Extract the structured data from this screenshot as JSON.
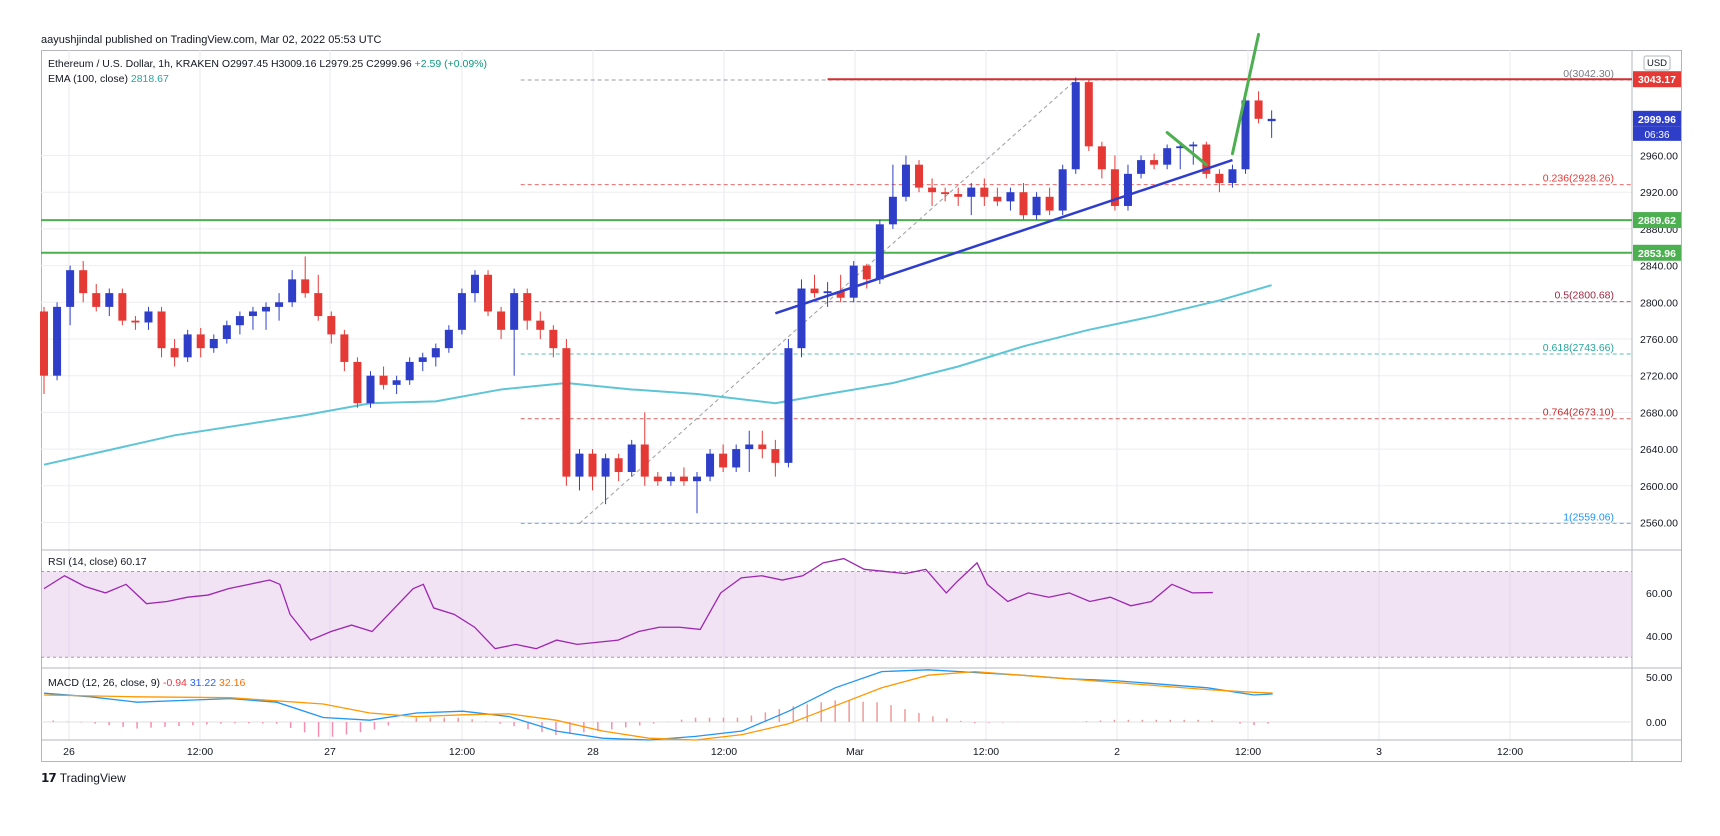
{
  "header": {
    "published_text": "aayushjindal published on TradingView.com, Mar 02, 2022 05:53 UTC"
  },
  "legend": {
    "symbol": "Ethereum / U.S. Dollar, 1h, KRAKEN",
    "open": "O2997.45",
    "high": "H3009.16",
    "low": "L2979.25",
    "close": "C2999.96",
    "change": "+2.59 (+0.09%)",
    "ema_label": "EMA (100, close)",
    "ema_value": "2818.67"
  },
  "rsi": {
    "label": "RSI (14, close)",
    "value": "60.17"
  },
  "macd": {
    "label": "MACD (12, 26, close, 9)",
    "v1": "-0.94",
    "v2": "31.22",
    "v3": "32.16"
  },
  "footer": {
    "brand": "TradingView"
  },
  "colors": {
    "up": "#2e3ec9",
    "down": "#e53935",
    "ema": "#5ec5d6",
    "support": "#4caf50",
    "resistance": "#d32f2f",
    "trend": "#2f3dcc",
    "rsi": "#9c27b0",
    "macd": "#2196f3",
    "signal": "#ff9800"
  },
  "chart_data": {
    "type": "candlestick",
    "symbol": "ETH/USD",
    "timeframe": "1h",
    "currency": "USD",
    "ylim": [
      2530,
      3075
    ],
    "y_ticks": [
      2560,
      2600,
      2640,
      2680,
      2720,
      2760,
      2800,
      2840,
      2880,
      2920,
      2960
    ],
    "y_tick_labels": [
      "2560.00",
      "2600.00",
      "2640.00",
      "2680.00",
      "2720.00",
      "2760.00",
      "2800.00",
      "2840.00",
      "2880.00",
      "2920.00",
      "2960.00"
    ],
    "x_tick_labels": [
      "26",
      "12:00",
      "27",
      "12:00",
      "28",
      "12:00",
      "Mar",
      "12:00",
      "2",
      "12:00",
      "3",
      "12:00"
    ],
    "price_tags": [
      {
        "label": "3043.17",
        "value": 3043.17,
        "color": "#e53935"
      },
      {
        "label": "2999.96",
        "value": 2999.96,
        "color": "#2e3ec9"
      },
      {
        "label": "06:36",
        "value": 2999.96,
        "color": "#2e3ec9"
      },
      {
        "label": "2889.62",
        "value": 2889.62,
        "color": "#4caf50"
      },
      {
        "label": "2853.96",
        "value": 2853.96,
        "color": "#4caf50"
      }
    ],
    "fib_levels": [
      {
        "label": "0(3042.30)",
        "ratio": "0",
        "value": 3042.3,
        "color": "#787b86"
      },
      {
        "label": "0.236(2928.26)",
        "ratio": "0.236",
        "value": 2928.26,
        "color": "#e53935"
      },
      {
        "label": "0.5(2800.68)",
        "ratio": "0.5",
        "value": 2800.68,
        "color": "#9c2742"
      },
      {
        "label": "0.618(2743.66)",
        "ratio": "0.618",
        "value": 2743.66,
        "color": "#26a69a"
      },
      {
        "label": "0.764(2673.10)",
        "ratio": "0.764",
        "value": 2673.1,
        "color": "#c62828"
      },
      {
        "label": "1(2559.06)",
        "ratio": "1",
        "value": 2559.06,
        "color": "#2196f3"
      }
    ],
    "horizontal_lines": [
      {
        "name": "resistance",
        "value": 3043.17
      },
      {
        "name": "support-upper",
        "value": 2889.62
      },
      {
        "name": "support-lower",
        "value": 2853.96
      }
    ],
    "trendline": {
      "start_t": 56,
      "start_v": 2788,
      "end_t": 91,
      "end_v": 2955
    },
    "projection": [
      {
        "t1": 86,
        "v1": 2985,
        "t2": 89,
        "v2": 2950
      },
      {
        "t1": 91,
        "v1": 2962,
        "t2": 93,
        "v2": 3092
      }
    ],
    "candles": [
      [
        2790,
        2795,
        2700,
        2720
      ],
      [
        2720,
        2800,
        2715,
        2795
      ],
      [
        2795,
        2840,
        2775,
        2835
      ],
      [
        2835,
        2845,
        2800,
        2810
      ],
      [
        2810,
        2820,
        2790,
        2795
      ],
      [
        2795,
        2815,
        2785,
        2810
      ],
      [
        2810,
        2815,
        2775,
        2780
      ],
      [
        2780,
        2785,
        2770,
        2778
      ],
      [
        2778,
        2795,
        2770,
        2790
      ],
      [
        2790,
        2795,
        2740,
        2750
      ],
      [
        2750,
        2760,
        2730,
        2740
      ],
      [
        2740,
        2770,
        2735,
        2765
      ],
      [
        2765,
        2772,
        2740,
        2750
      ],
      [
        2750,
        2765,
        2745,
        2760
      ],
      [
        2760,
        2780,
        2755,
        2775
      ],
      [
        2775,
        2790,
        2765,
        2785
      ],
      [
        2785,
        2795,
        2770,
        2790
      ],
      [
        2790,
        2800,
        2770,
        2795
      ],
      [
        2795,
        2810,
        2780,
        2800
      ],
      [
        2800,
        2835,
        2795,
        2825
      ],
      [
        2825,
        2850,
        2805,
        2810
      ],
      [
        2810,
        2830,
        2780,
        2785
      ],
      [
        2785,
        2790,
        2755,
        2765
      ],
      [
        2765,
        2770,
        2725,
        2735
      ],
      [
        2735,
        2740,
        2685,
        2690
      ],
      [
        2690,
        2725,
        2685,
        2720
      ],
      [
        2720,
        2730,
        2705,
        2710
      ],
      [
        2710,
        2720,
        2700,
        2715
      ],
      [
        2715,
        2740,
        2710,
        2735
      ],
      [
        2735,
        2745,
        2725,
        2740
      ],
      [
        2740,
        2755,
        2730,
        2750
      ],
      [
        2750,
        2775,
        2745,
        2770
      ],
      [
        2770,
        2815,
        2765,
        2810
      ],
      [
        2810,
        2835,
        2800,
        2830
      ],
      [
        2830,
        2835,
        2785,
        2790
      ],
      [
        2790,
        2795,
        2760,
        2770
      ],
      [
        2770,
        2815,
        2720,
        2810
      ],
      [
        2810,
        2815,
        2770,
        2780
      ],
      [
        2780,
        2790,
        2760,
        2770
      ],
      [
        2770,
        2775,
        2740,
        2750
      ],
      [
        2750,
        2760,
        2600,
        2610
      ],
      [
        2610,
        2640,
        2595,
        2635
      ],
      [
        2635,
        2640,
        2595,
        2610
      ],
      [
        2610,
        2635,
        2580,
        2630
      ],
      [
        2630,
        2635,
        2605,
        2615
      ],
      [
        2615,
        2650,
        2610,
        2645
      ],
      [
        2645,
        2680,
        2600,
        2610
      ],
      [
        2610,
        2615,
        2600,
        2605
      ],
      [
        2605,
        2615,
        2600,
        2610
      ],
      [
        2610,
        2620,
        2600,
        2605
      ],
      [
        2605,
        2615,
        2570,
        2610
      ],
      [
        2610,
        2640,
        2605,
        2635
      ],
      [
        2635,
        2645,
        2615,
        2620
      ],
      [
        2620,
        2645,
        2615,
        2640
      ],
      [
        2640,
        2660,
        2615,
        2645
      ],
      [
        2645,
        2660,
        2630,
        2640
      ],
      [
        2640,
        2650,
        2610,
        2625
      ],
      [
        2625,
        2760,
        2620,
        2750
      ],
      [
        2750,
        2825,
        2740,
        2815
      ],
      [
        2815,
        2830,
        2805,
        2810
      ],
      [
        2810,
        2822,
        2795,
        2812
      ],
      [
        2812,
        2830,
        2800,
        2805
      ],
      [
        2805,
        2845,
        2800,
        2840
      ],
      [
        2840,
        2842,
        2815,
        2825
      ],
      [
        2825,
        2890,
        2820,
        2885
      ],
      [
        2885,
        2950,
        2880,
        2915
      ],
      [
        2915,
        2960,
        2910,
        2950
      ],
      [
        2950,
        2955,
        2920,
        2925
      ],
      [
        2925,
        2935,
        2905,
        2920
      ],
      [
        2920,
        2925,
        2910,
        2918
      ],
      [
        2918,
        2925,
        2905,
        2915
      ],
      [
        2915,
        2930,
        2895,
        2925
      ],
      [
        2925,
        2935,
        2905,
        2915
      ],
      [
        2915,
        2925,
        2905,
        2910
      ],
      [
        2910,
        2925,
        2900,
        2920
      ],
      [
        2920,
        2930,
        2890,
        2895
      ],
      [
        2895,
        2920,
        2890,
        2915
      ],
      [
        2915,
        2925,
        2895,
        2900
      ],
      [
        2900,
        2950,
        2895,
        2945
      ],
      [
        2945,
        3045,
        2940,
        3040
      ],
      [
        3040,
        3042,
        2965,
        2970
      ],
      [
        2970,
        2975,
        2935,
        2945
      ],
      [
        2945,
        2960,
        2900,
        2905
      ],
      [
        2905,
        2950,
        2900,
        2940
      ],
      [
        2940,
        2960,
        2935,
        2955
      ],
      [
        2955,
        2962,
        2945,
        2950
      ],
      [
        2950,
        2972,
        2945,
        2968
      ],
      [
        2968,
        2975,
        2945,
        2970
      ],
      [
        2970,
        2975,
        2950,
        2972
      ],
      [
        2972,
        2975,
        2935,
        2940
      ],
      [
        2940,
        2945,
        2920,
        2930
      ],
      [
        2930,
        2950,
        2925,
        2945
      ],
      [
        2945,
        3025,
        2940,
        3020
      ],
      [
        3020,
        3030,
        2995,
        3000
      ],
      [
        2997.45,
        3009.16,
        2979.25,
        2999.96
      ]
    ],
    "ema100": [
      [
        0,
        2623
      ],
      [
        10,
        2655
      ],
      [
        20,
        2677
      ],
      [
        25,
        2690
      ],
      [
        30,
        2692
      ],
      [
        35,
        2705
      ],
      [
        40,
        2712
      ],
      [
        45,
        2705
      ],
      [
        50,
        2700
      ],
      [
        56,
        2690
      ],
      [
        60,
        2700
      ],
      [
        65,
        2712
      ],
      [
        70,
        2730
      ],
      [
        75,
        2752
      ],
      [
        80,
        2770
      ],
      [
        85,
        2785
      ],
      [
        90,
        2802
      ],
      [
        94,
        2818.67
      ]
    ],
    "rsi": [
      [
        0,
        62
      ],
      [
        2,
        68
      ],
      [
        4,
        63
      ],
      [
        6,
        60
      ],
      [
        8,
        64
      ],
      [
        10,
        55
      ],
      [
        12,
        56
      ],
      [
        14,
        58
      ],
      [
        16,
        59
      ],
      [
        18,
        62
      ],
      [
        20,
        64
      ],
      [
        22,
        66
      ],
      [
        23,
        64
      ],
      [
        24,
        50
      ],
      [
        26,
        38
      ],
      [
        28,
        42
      ],
      [
        30,
        45
      ],
      [
        32,
        42
      ],
      [
        34,
        52
      ],
      [
        36,
        62
      ],
      [
        37,
        64
      ],
      [
        38,
        53
      ],
      [
        40,
        50
      ],
      [
        42,
        44
      ],
      [
        44,
        34
      ],
      [
        46,
        36
      ],
      [
        48,
        34
      ],
      [
        50,
        38
      ],
      [
        52,
        36
      ],
      [
        54,
        37
      ],
      [
        56,
        38
      ],
      [
        58,
        42
      ],
      [
        60,
        44
      ],
      [
        62,
        44
      ],
      [
        64,
        43
      ],
      [
        66,
        60
      ],
      [
        68,
        67
      ],
      [
        70,
        68
      ],
      [
        72,
        66
      ],
      [
        74,
        68
      ],
      [
        76,
        74
      ],
      [
        78,
        76
      ],
      [
        80,
        71
      ],
      [
        82,
        70
      ],
      [
        84,
        69
      ],
      [
        86,
        71
      ],
      [
        88,
        60
      ],
      [
        89,
        65
      ],
      [
        91,
        74
      ],
      [
        92,
        64
      ],
      [
        94,
        56
      ],
      [
        96,
        60
      ],
      [
        98,
        58
      ],
      [
        100,
        60
      ],
      [
        102,
        56
      ],
      [
        104,
        58
      ],
      [
        106,
        54
      ],
      [
        108,
        56
      ],
      [
        110,
        64
      ],
      [
        112,
        60
      ],
      [
        114,
        60.17
      ]
    ],
    "rsi_ylim": [
      25,
      80
    ],
    "rsi_ticks": [
      40,
      60
    ],
    "rsi_tick_labels": [
      "40.00",
      "60.00"
    ],
    "rsi_band": [
      30,
      70
    ],
    "macd_ylim": [
      -20,
      60
    ],
    "macd_ticks": [
      0,
      50
    ],
    "macd_tick_labels": [
      "0.00",
      "50.00"
    ],
    "macd_line": [
      [
        0,
        32
      ],
      [
        5,
        28
      ],
      [
        10,
        22
      ],
      [
        15,
        24
      ],
      [
        20,
        26
      ],
      [
        25,
        22
      ],
      [
        30,
        5
      ],
      [
        35,
        2
      ],
      [
        40,
        10
      ],
      [
        45,
        12
      ],
      [
        50,
        6
      ],
      [
        55,
        -10
      ],
      [
        60,
        -18
      ],
      [
        65,
        -20
      ],
      [
        70,
        -16
      ],
      [
        75,
        -10
      ],
      [
        80,
        12
      ],
      [
        85,
        38
      ],
      [
        90,
        56
      ],
      [
        95,
        58
      ],
      [
        100,
        55
      ],
      [
        105,
        52
      ],
      [
        110,
        48
      ],
      [
        115,
        46
      ],
      [
        120,
        42
      ],
      [
        125,
        38
      ],
      [
        130,
        30
      ],
      [
        132,
        31.22
      ]
    ],
    "macd_signal": [
      [
        0,
        30
      ],
      [
        10,
        28
      ],
      [
        20,
        27
      ],
      [
        30,
        20
      ],
      [
        35,
        10
      ],
      [
        40,
        6
      ],
      [
        45,
        8
      ],
      [
        50,
        9
      ],
      [
        55,
        2
      ],
      [
        60,
        -10
      ],
      [
        65,
        -18
      ],
      [
        70,
        -20
      ],
      [
        75,
        -14
      ],
      [
        80,
        -2
      ],
      [
        85,
        18
      ],
      [
        90,
        38
      ],
      [
        95,
        52
      ],
      [
        100,
        56
      ],
      [
        105,
        52
      ],
      [
        110,
        48
      ],
      [
        115,
        44
      ],
      [
        120,
        40
      ],
      [
        125,
        36
      ],
      [
        130,
        33
      ],
      [
        132,
        32.16
      ]
    ]
  }
}
